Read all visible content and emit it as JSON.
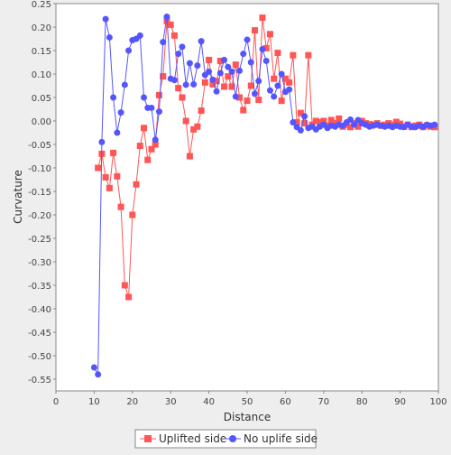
{
  "chart_data": {
    "type": "line",
    "xlabel": "Distance",
    "ylabel": "Curvature",
    "xlim": [
      0,
      100
    ],
    "ylim": [
      -0.575,
      0.25
    ],
    "xticks": [
      "0",
      "10",
      "20",
      "30",
      "40",
      "50",
      "60",
      "70",
      "80",
      "90",
      "100"
    ],
    "yticks": [
      "0.25",
      "0.20",
      "0.15",
      "0.10",
      "0.05",
      "0.00",
      "-0.05",
      "-0.10",
      "-0.15",
      "-0.20",
      "-0.25",
      "-0.30",
      "-0.35",
      "-0.40",
      "-0.45",
      "-0.50",
      "-0.55"
    ],
    "legend_position": "bottom",
    "series": [
      {
        "name": "Uplifted side",
        "color": "#ff5555",
        "marker": "square",
        "points": [
          [
            11,
            -0.1
          ],
          [
            12,
            -0.07
          ],
          [
            13,
            -0.12
          ],
          [
            14,
            -0.143
          ],
          [
            15,
            -0.068
          ],
          [
            16,
            -0.118
          ],
          [
            17,
            -0.183
          ],
          [
            18,
            -0.35
          ],
          [
            19,
            -0.375
          ],
          [
            20,
            -0.2
          ],
          [
            21,
            -0.135
          ],
          [
            22,
            -0.053
          ],
          [
            23,
            -0.015
          ],
          [
            24,
            -0.083
          ],
          [
            25,
            -0.06
          ],
          [
            26,
            -0.05
          ],
          [
            27,
            0.055
          ],
          [
            28,
            0.095
          ],
          [
            29,
            0.213
          ],
          [
            30,
            0.205
          ],
          [
            31,
            0.182
          ],
          [
            32,
            0.07
          ],
          [
            33,
            0.05
          ],
          [
            34,
            0.0
          ],
          [
            35,
            -0.075
          ],
          [
            36,
            -0.018
          ],
          [
            37,
            -0.012
          ],
          [
            38,
            0.022
          ],
          [
            39,
            0.082
          ],
          [
            40,
            0.13
          ],
          [
            41,
            0.078
          ],
          [
            42,
            0.085
          ],
          [
            43,
            0.128
          ],
          [
            44,
            0.073
          ],
          [
            45,
            0.095
          ],
          [
            46,
            0.073
          ],
          [
            47,
            0.12
          ],
          [
            48,
            0.05
          ],
          [
            49,
            0.023
          ],
          [
            50,
            0.043
          ],
          [
            51,
            0.075
          ],
          [
            52,
            0.193
          ],
          [
            53,
            0.045
          ],
          [
            54,
            0.22
          ],
          [
            55,
            0.155
          ],
          [
            56,
            0.185
          ],
          [
            57,
            0.09
          ],
          [
            58,
            0.145
          ],
          [
            59,
            0.043
          ],
          [
            60,
            0.09
          ],
          [
            61,
            0.082
          ],
          [
            62,
            0.14
          ],
          [
            63,
            -0.003
          ],
          [
            64,
            0.017
          ],
          [
            65,
            -0.005
          ],
          [
            66,
            0.14
          ],
          [
            67,
            -0.008
          ],
          [
            68,
            0.0
          ],
          [
            69,
            -0.003
          ],
          [
            70,
            0.0
          ],
          [
            71,
            -0.01
          ],
          [
            72,
            0.002
          ],
          [
            73,
            -0.005
          ],
          [
            74,
            0.005
          ],
          [
            75,
            -0.012
          ],
          [
            76,
            -0.008
          ],
          [
            77,
            -0.013
          ],
          [
            78,
            -0.005
          ],
          [
            79,
            -0.012
          ],
          [
            80,
            0.0
          ],
          [
            81,
            -0.005
          ],
          [
            82,
            -0.007
          ],
          [
            83,
            -0.008
          ],
          [
            84,
            -0.005
          ],
          [
            85,
            -0.01
          ],
          [
            86,
            -0.008
          ],
          [
            87,
            -0.005
          ],
          [
            88,
            -0.008
          ],
          [
            89,
            -0.002
          ],
          [
            90,
            -0.006
          ],
          [
            91,
            -0.012
          ],
          [
            92,
            -0.008
          ],
          [
            93,
            -0.013
          ],
          [
            94,
            -0.01
          ],
          [
            95,
            -0.008
          ],
          [
            96,
            -0.013
          ],
          [
            97,
            -0.01
          ],
          [
            98,
            -0.012
          ],
          [
            99,
            -0.013
          ]
        ]
      },
      {
        "name": "No uplife side",
        "color": "#5555ff",
        "marker": "circle",
        "points": [
          [
            10,
            -0.525
          ],
          [
            11,
            -0.54
          ],
          [
            12,
            -0.045
          ],
          [
            13,
            0.217
          ],
          [
            14,
            0.178
          ],
          [
            15,
            0.05
          ],
          [
            16,
            -0.025
          ],
          [
            17,
            0.018
          ],
          [
            18,
            0.077
          ],
          [
            19,
            0.15
          ],
          [
            20,
            0.172
          ],
          [
            21,
            0.175
          ],
          [
            22,
            0.182
          ],
          [
            23,
            0.05
          ],
          [
            24,
            0.028
          ],
          [
            25,
            0.028
          ],
          [
            26,
            -0.04
          ],
          [
            27,
            0.02
          ],
          [
            28,
            0.168
          ],
          [
            29,
            0.222
          ],
          [
            30,
            0.09
          ],
          [
            31,
            0.087
          ],
          [
            32,
            0.143
          ],
          [
            33,
            0.158
          ],
          [
            34,
            0.077
          ],
          [
            35,
            0.123
          ],
          [
            36,
            0.078
          ],
          [
            37,
            0.118
          ],
          [
            38,
            0.17
          ],
          [
            39,
            0.098
          ],
          [
            40,
            0.105
          ],
          [
            41,
            0.088
          ],
          [
            42,
            0.063
          ],
          [
            43,
            0.102
          ],
          [
            44,
            0.13
          ],
          [
            45,
            0.115
          ],
          [
            46,
            0.105
          ],
          [
            47,
            0.052
          ],
          [
            48,
            0.107
          ],
          [
            49,
            0.143
          ],
          [
            50,
            0.173
          ],
          [
            51,
            0.125
          ],
          [
            52,
            0.058
          ],
          [
            53,
            0.085
          ],
          [
            54,
            0.153
          ],
          [
            55,
            0.128
          ],
          [
            56,
            0.065
          ],
          [
            57,
            0.052
          ],
          [
            58,
            0.075
          ],
          [
            59,
            0.1
          ],
          [
            60,
            0.062
          ],
          [
            61,
            0.067
          ],
          [
            62,
            -0.003
          ],
          [
            63,
            -0.013
          ],
          [
            64,
            -0.02
          ],
          [
            65,
            0.01
          ],
          [
            66,
            -0.015
          ],
          [
            67,
            -0.012
          ],
          [
            68,
            -0.018
          ],
          [
            69,
            -0.012
          ],
          [
            70,
            -0.008
          ],
          [
            71,
            -0.015
          ],
          [
            72,
            -0.01
          ],
          [
            73,
            -0.012
          ],
          [
            74,
            -0.008
          ],
          [
            75,
            -0.01
          ],
          [
            76,
            -0.003
          ],
          [
            77,
            0.003
          ],
          [
            78,
            -0.008
          ],
          [
            79,
            0.002
          ],
          [
            80,
            -0.005
          ],
          [
            81,
            -0.008
          ],
          [
            82,
            -0.012
          ],
          [
            83,
            -0.01
          ],
          [
            84,
            -0.008
          ],
          [
            85,
            -0.01
          ],
          [
            86,
            -0.012
          ],
          [
            87,
            -0.01
          ],
          [
            88,
            -0.013
          ],
          [
            89,
            -0.01
          ],
          [
            90,
            -0.012
          ],
          [
            91,
            -0.013
          ],
          [
            92,
            -0.008
          ],
          [
            93,
            -0.012
          ],
          [
            94,
            -0.013
          ],
          [
            95,
            -0.01
          ],
          [
            96,
            -0.012
          ],
          [
            97,
            -0.008
          ],
          [
            98,
            -0.01
          ],
          [
            99,
            -0.008
          ]
        ]
      }
    ]
  }
}
